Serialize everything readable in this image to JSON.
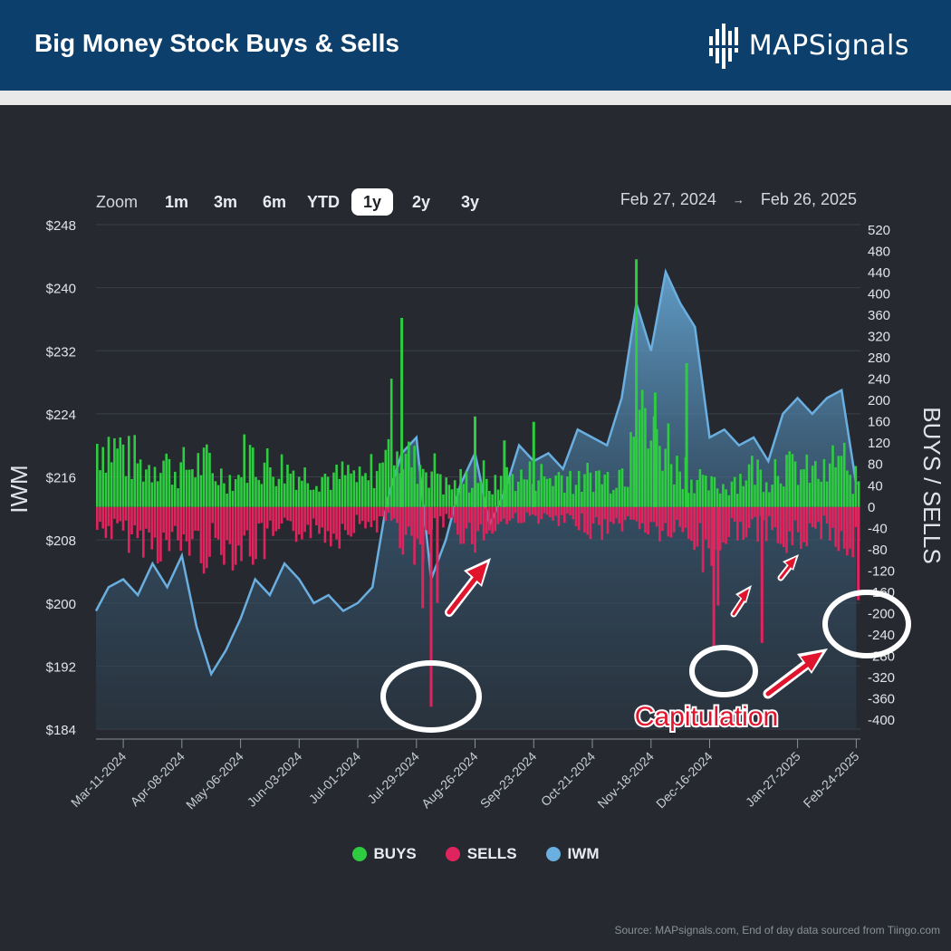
{
  "header": {
    "title": "Big Money Stock Buys & Sells",
    "logo_text_bold": "MAP",
    "logo_text_light": "Signals"
  },
  "zoom": {
    "label": "Zoom",
    "options": [
      "1m",
      "3m",
      "6m",
      "YTD",
      "1y",
      "2y",
      "3y"
    ],
    "active": "1y"
  },
  "range": {
    "from": "Feb 27, 2024",
    "arrow": "→",
    "to": "Feb 26, 2025"
  },
  "annotations": {
    "capitulation": "Capitulation"
  },
  "legend": [
    {
      "name": "BUYS",
      "color": "#2ecc40"
    },
    {
      "name": "SELLS",
      "color": "#e0245e"
    },
    {
      "name": "IWM",
      "color": "#6aafe0"
    }
  ],
  "source": "Source: MAPsignals.com, End of day data sourced from Tiingo.com",
  "colors": {
    "buys": "#2ecc40",
    "sells": "#e0245e",
    "iwm_line": "#6aafe0",
    "annotation": "#e0142c",
    "background": "#262a30",
    "header": "#0c3f6b"
  },
  "chart_data": {
    "type": "bar",
    "title": "Big Money Stock Buys & Sells",
    "left_axis": {
      "label": "IWM",
      "range": [
        184,
        248
      ],
      "ticks": [
        "$248",
        "$240",
        "$232",
        "$224",
        "$216",
        "$208",
        "$200",
        "$192",
        "$184"
      ]
    },
    "right_axis": {
      "label": "BUYS / SELLS",
      "range": [
        -400,
        520
      ],
      "ticks": [
        "520",
        "480",
        "440",
        "400",
        "360",
        "320",
        "280",
        "240",
        "200",
        "160",
        "120",
        "80",
        "40",
        "0",
        "-40",
        "-80",
        "-120",
        "-160",
        "-200",
        "-240",
        "-280",
        "-320",
        "-360",
        "-400"
      ]
    },
    "x_axis": {
      "ticks": [
        "Mar-11-2024",
        "Apr-08-2024",
        "May-06-2024",
        "Jun-03-2024",
        "Jul-01-2024",
        "Jul-29-2024",
        "Aug-26-2024",
        "Sep-23-2024",
        "Oct-21-2024",
        "Nov-18-2024",
        "Dec-16-2024",
        "Jan-27-2025",
        "Feb-24-2025"
      ]
    },
    "series": [
      {
        "name": "IWM",
        "kind": "area",
        "points": [
          [
            "Feb-27-2024",
            199
          ],
          [
            "Mar-04-2024",
            202
          ],
          [
            "Mar-11-2024",
            203
          ],
          [
            "Mar-18-2024",
            201
          ],
          [
            "Mar-25-2024",
            205
          ],
          [
            "Apr-01-2024",
            202
          ],
          [
            "Apr-08-2024",
            206
          ],
          [
            "Apr-15-2024",
            197
          ],
          [
            "Apr-22-2024",
            191
          ],
          [
            "Apr-29-2024",
            194
          ],
          [
            "May-06-2024",
            198
          ],
          [
            "May-13-2024",
            203
          ],
          [
            "May-20-2024",
            201
          ],
          [
            "May-27-2024",
            205
          ],
          [
            "Jun-03-2024",
            203
          ],
          [
            "Jun-10-2024",
            200
          ],
          [
            "Jun-17-2024",
            201
          ],
          [
            "Jun-24-2024",
            199
          ],
          [
            "Jul-01-2024",
            200
          ],
          [
            "Jul-08-2024",
            202
          ],
          [
            "Jul-15-2024",
            213
          ],
          [
            "Jul-22-2024",
            219
          ],
          [
            "Jul-29-2024",
            221
          ],
          [
            "Aug-05-2024",
            203
          ],
          [
            "Aug-12-2024",
            208
          ],
          [
            "Aug-19-2024",
            215
          ],
          [
            "Aug-26-2024",
            219
          ],
          [
            "Sep-02-2024",
            210
          ],
          [
            "Sep-09-2024",
            214
          ],
          [
            "Sep-16-2024",
            220
          ],
          [
            "Sep-23-2024",
            218
          ],
          [
            "Sep-30-2024",
            219
          ],
          [
            "Oct-07-2024",
            217
          ],
          [
            "Oct-14-2024",
            222
          ],
          [
            "Oct-21-2024",
            221
          ],
          [
            "Oct-28-2024",
            220
          ],
          [
            "Nov-04-2024",
            226
          ],
          [
            "Nov-11-2024",
            238
          ],
          [
            "Nov-18-2024",
            232
          ],
          [
            "Nov-25-2024",
            242
          ],
          [
            "Dec-02-2024",
            238
          ],
          [
            "Dec-09-2024",
            235
          ],
          [
            "Dec-16-2024",
            221
          ],
          [
            "Dec-23-2024",
            222
          ],
          [
            "Dec-30-2024",
            220
          ],
          [
            "Jan-06-2025",
            221
          ],
          [
            "Jan-13-2025",
            218
          ],
          [
            "Jan-20-2025",
            224
          ],
          [
            "Jan-27-2025",
            226
          ],
          [
            "Feb-03-2025",
            224
          ],
          [
            "Feb-10-2025",
            226
          ],
          [
            "Feb-17-2025",
            227
          ],
          [
            "Feb-24-2025",
            215
          ]
        ]
      },
      {
        "name": "BUYS",
        "kind": "bar",
        "weekly_avg": [
          120,
          110,
          90,
          75,
          90,
          70,
          75,
          80,
          60,
          55,
          95,
          80,
          75,
          70,
          60,
          60,
          55,
          60,
          50,
          70,
          160,
          90,
          80,
          70,
          40,
          50,
          60,
          40,
          55,
          55,
          60,
          55,
          60,
          45,
          60,
          55,
          70,
          230,
          130,
          120,
          75,
          55,
          40,
          40,
          55,
          70,
          60,
          80,
          70,
          65,
          60,
          90,
          50
        ],
        "spikes": [
          [
            "Jul-22-2024",
            355
          ],
          [
            "Aug-26-2024",
            170
          ],
          [
            "Sep-09-2024",
            125
          ],
          [
            "Sep-23-2024",
            160
          ],
          [
            "Nov-11-2024",
            465
          ],
          [
            "Nov-20-2024",
            215
          ],
          [
            "Dec-05-2024",
            270
          ]
        ]
      },
      {
        "name": "SELLS",
        "kind": "bar",
        "weekly_avg": [
          -40,
          -45,
          -55,
          -60,
          -70,
          -70,
          -65,
          -80,
          -70,
          -75,
          -75,
          -70,
          -55,
          -50,
          -40,
          -45,
          -50,
          -35,
          -30,
          -30,
          -25,
          -60,
          -100,
          -40,
          -30,
          -45,
          -55,
          -40,
          -25,
          -20,
          -20,
          -25,
          -30,
          -30,
          -40,
          -40,
          -30,
          -30,
          -40,
          -45,
          -50,
          -60,
          -90,
          -60,
          -40,
          -45,
          -40,
          -70,
          -60,
          -50,
          -40,
          -60,
          -70
        ],
        "spikes": [
          [
            "Aug-05-2024",
            -375
          ],
          [
            "Aug-01-2024",
            -190
          ],
          [
            "Aug-08-2024",
            -180
          ],
          [
            "Dec-18-2024",
            -270
          ],
          [
            "Dec-20-2024",
            -185
          ],
          [
            "Jan-10-2025",
            -255
          ],
          [
            "Feb-25-2025",
            -175
          ]
        ]
      }
    ],
    "legend_placement": "bottom-center",
    "grid": true
  }
}
